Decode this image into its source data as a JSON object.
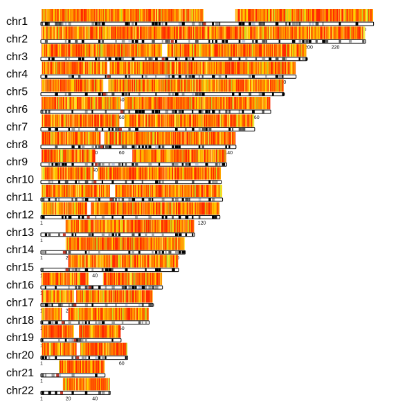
{
  "chart_data": {
    "type": "heatmap",
    "title": "",
    "xlabel": "",
    "ylabel": "",
    "tick_step_mb": 20,
    "first_tick_label": "1",
    "chromosomes": [
      {
        "name": "chr1",
        "length_mb": 248,
        "gaps": [
          [
            121,
            145
          ]
        ]
      },
      {
        "name": "chr2",
        "length_mb": 242,
        "gaps": []
      },
      {
        "name": "chr3",
        "length_mb": 198,
        "gaps": [
          [
            90,
            94
          ]
        ]
      },
      {
        "name": "chr4",
        "length_mb": 190,
        "gaps": [
          [
            49,
            51
          ]
        ]
      },
      {
        "name": "chr5",
        "length_mb": 181,
        "gaps": [
          [
            46,
            50
          ]
        ]
      },
      {
        "name": "chr6",
        "length_mb": 171,
        "gaps": [
          [
            59,
            62
          ]
        ]
      },
      {
        "name": "chr7",
        "length_mb": 159,
        "gaps": [
          [
            58,
            62
          ]
        ]
      },
      {
        "name": "chr8",
        "length_mb": 145,
        "gaps": [
          [
            44,
            47
          ]
        ]
      },
      {
        "name": "chr9",
        "length_mb": 138,
        "gaps": [
          [
            40,
            68
          ]
        ]
      },
      {
        "name": "chr10",
        "length_mb": 134,
        "gaps": [
          [
            39,
            42
          ]
        ]
      },
      {
        "name": "chr11",
        "length_mb": 135,
        "gaps": [
          [
            51,
            55
          ]
        ]
      },
      {
        "name": "chr12",
        "length_mb": 133,
        "gaps": [
          [
            34,
            37
          ]
        ]
      },
      {
        "name": "chr13",
        "length_mb": 114,
        "gaps": [
          [
            0,
            18
          ]
        ]
      },
      {
        "name": "chr14",
        "length_mb": 107,
        "gaps": [
          [
            0,
            18
          ]
        ]
      },
      {
        "name": "chr15",
        "length_mb": 102,
        "gaps": [
          [
            0,
            20
          ]
        ]
      },
      {
        "name": "chr16",
        "length_mb": 90,
        "gaps": [
          [
            35,
            46
          ]
        ]
      },
      {
        "name": "chr17",
        "length_mb": 83,
        "gaps": [
          [
            24,
            26
          ]
        ]
      },
      {
        "name": "chr18",
        "length_mb": 80,
        "gaps": [
          [
            15,
            20
          ]
        ]
      },
      {
        "name": "chr19",
        "length_mb": 59,
        "gaps": [
          [
            24,
            28
          ]
        ]
      },
      {
        "name": "chr20",
        "length_mb": 64,
        "gaps": [
          [
            26,
            29
          ]
        ]
      },
      {
        "name": "chr21",
        "length_mb": 47,
        "gaps": [
          [
            0,
            13
          ]
        ]
      },
      {
        "name": "chr22",
        "length_mb": 51,
        "gaps": [
          [
            0,
            16
          ]
        ]
      }
    ],
    "color_scale": [
      "#ff2a00",
      "#ff6a00",
      "#ffa400",
      "#ffd000",
      "#ffe94a",
      "#b8e22a"
    ]
  }
}
